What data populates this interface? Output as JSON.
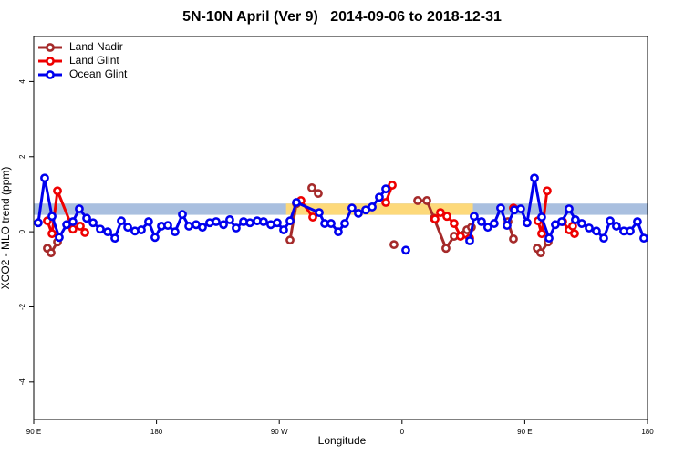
{
  "chart_data": {
    "type": "line",
    "title": "5N-10N April (Ver 9)   2014-09-06 to 2018-12-31",
    "x_label": "Longitude",
    "y_label": "XCO2 - MLO trend (ppm)",
    "xlim": [
      90,
      540
    ],
    "ylim": [
      -5,
      5.2
    ],
    "xticks": [
      {
        "value": 90,
        "label": "90 E"
      },
      180,
      {
        "value": 270,
        "label": "90 W"
      },
      {
        "value": 360,
        "label": "0"
      },
      {
        "value": 450,
        "label": "90 E"
      },
      {
        "value": 540,
        "label": "180"
      }
    ],
    "yticks": [
      -4,
      -2,
      0,
      2,
      4
    ],
    "legend": "top-left",
    "bands": [
      {
        "color": "#a9bfdf",
        "x": [
          90,
          540
        ],
        "y": [
          0.45,
          0.75
        ]
      },
      {
        "color": "#fdd97a",
        "x": [
          275,
          412
        ],
        "y": [
          0.45,
          0.75
        ]
      }
    ],
    "series": [
      {
        "name": "Land Nadir",
        "color": "#a52a2a",
        "x": [
          100.0,
          102.7,
          107.4,
          200,
          277.9,
          282.6,
          290,
          293.9,
          298.6,
          320,
          354.1,
          370,
          371.5,
          378.2,
          383.5,
          392.2,
          398.2,
          407.6,
          410.9,
          430,
          437.7,
          441.7,
          450,
          459.1,
          461.7,
          467.1
        ],
        "values": [
          -0.44,
          -0.56,
          -0.27,
          null,
          -0.22,
          0.75,
          null,
          1.17,
          1.02,
          null,
          -0.34,
          null,
          0.83,
          0.83,
          0.36,
          -0.44,
          -0.12,
          0.05,
          0.12,
          null,
          0.27,
          -0.19,
          null,
          -0.44,
          -0.56,
          -0.27
        ]
      },
      {
        "name": "Land Glint",
        "color": "#ee0000",
        "x": [
          100.0,
          103.4,
          107.4,
          118.7,
          124.1,
          127.5,
          200,
          285.9,
          294.6,
          320,
          348.1,
          352.8,
          360,
          384.2,
          388.2,
          392.9,
          398.2,
          402.9,
          409.6,
          430,
          441.7,
          450,
          459.7,
          462.4,
          466.4,
          470,
          477.8,
          482.5,
          485.1,
          486.5
        ],
        "values": [
          0.29,
          -0.05,
          1.09,
          0.07,
          0.15,
          -0.02,
          null,
          0.83,
          0.39,
          null,
          0.78,
          1.24,
          null,
          0.34,
          0.51,
          0.41,
          0.22,
          -0.12,
          -0.17,
          null,
          0.63,
          null,
          0.29,
          -0.05,
          1.09,
          null,
          0.27,
          0.05,
          0.15,
          -0.05
        ]
      },
      {
        "name": "Ocean Glint",
        "color": "#0000ee",
        "x": [
          93.3,
          98.0,
          103.4,
          108.7,
          114.1,
          118.7,
          123.4,
          128.8,
          133.5,
          138.8,
          144.2,
          149.5,
          154.2,
          158.9,
          164.2,
          168.9,
          174.2,
          178.9,
          183.6,
          188.3,
          193.6,
          199.0,
          203.7,
          209.0,
          213.7,
          219.0,
          223.7,
          229.1,
          233.7,
          238.4,
          243.8,
          248.5,
          253.8,
          258.5,
          263.8,
          268.5,
          273.2,
          277.9,
          282.6,
          299.3,
          303.3,
          308.0,
          313.3,
          318.0,
          323.3,
          328.0,
          333.4,
          338.1,
          343.4,
          348.1,
          352,
          362.8,
          400,
          409.6,
          412.9,
          418.3,
          422.9,
          427.6,
          432.3,
          437.0,
          442.4,
          447.0,
          451.7,
          457.1,
          462.4,
          467.8,
          472.4,
          477.1,
          482.5,
          487.1,
          491.8,
          497.2,
          502.5,
          507.9,
          512.6,
          517.2,
          522.6,
          527.3,
          532.6,
          537.3
        ],
        "values": [
          0.24,
          1.43,
          0.41,
          -0.15,
          0.19,
          0.27,
          0.61,
          0.36,
          0.24,
          0.07,
          0,
          -0.17,
          0.29,
          0.12,
          0.02,
          0.05,
          0.27,
          -0.15,
          0.15,
          0.17,
          0,
          0.46,
          0.15,
          0.19,
          0.12,
          0.24,
          0.27,
          0.19,
          0.32,
          0.1,
          0.27,
          0.24,
          0.29,
          0.27,
          0.19,
          0.24,
          0.05,
          0.29,
          0.78,
          0.51,
          0.22,
          0.22,
          0,
          0.22,
          0.63,
          0.49,
          0.58,
          0.66,
          0.92,
          1.14,
          null,
          -0.49,
          null,
          -0.24,
          0.41,
          0.27,
          0.12,
          0.22,
          0.63,
          0.17,
          0.58,
          0.61,
          0.24,
          1.43,
          0.39,
          -0.17,
          0.19,
          0.27,
          0.61,
          0.32,
          0.22,
          0.1,
          0.02,
          -0.17,
          0.29,
          0.15,
          0.02,
          0.02,
          0.27,
          -0.17
        ]
      }
    ]
  }
}
